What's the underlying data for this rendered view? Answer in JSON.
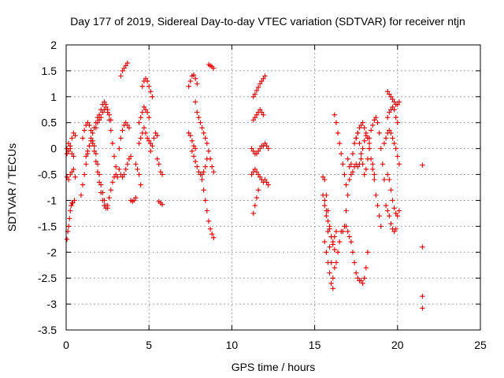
{
  "chart_data": {
    "type": "scatter",
    "title": "Day 177 of 2019, Sidereal Day-to-day VTEC variation (SDTVAR) for receiver ntjn",
    "xlabel": "GPS time / hours",
    "ylabel": "SDTVAR / TECUs",
    "xlim": [
      0,
      25
    ],
    "ylim": [
      -3.5,
      2
    ],
    "xticks": [
      0,
      5,
      10,
      15,
      20,
      25
    ],
    "xtick_labels": [
      "0",
      "5",
      "10",
      "15",
      "20",
      "25"
    ],
    "yticks": [
      2,
      1.5,
      1,
      0.5,
      0,
      -0.5,
      -1,
      -1.5,
      -2,
      -2.5,
      -3,
      -3.5
    ],
    "ytick_labels": [
      "2",
      "1.5",
      "1",
      "0.5",
      "0",
      "-0.5",
      "-1",
      "-1.5",
      "-2",
      "-2.5",
      "-3",
      "-3.5"
    ],
    "grid": true,
    "marker": "plus",
    "color": "#e00000",
    "series": [
      {
        "name": "s1",
        "x": [
          0.05,
          0.1,
          0.15,
          0.2,
          0.25,
          0.3,
          0.35,
          0.4,
          0.5
        ],
        "y": [
          -1.75,
          -1.6,
          -1.5,
          -1.35,
          -1.2,
          -1.1,
          -1.05,
          -1.05,
          -1.0
        ]
      },
      {
        "name": "s2",
        "x": [
          0.05,
          0.15,
          0.25,
          0.35,
          0.45,
          0.55
        ],
        "y": [
          0.0,
          0.1,
          0.05,
          0.2,
          0.3,
          0.25
        ]
      },
      {
        "name": "s3",
        "x": [
          0.05,
          0.15,
          0.25,
          0.35,
          0.45,
          0.55
        ],
        "y": [
          -0.55,
          -0.6,
          -0.5,
          -0.45,
          -0.4,
          -0.55
        ]
      },
      {
        "name": "s4",
        "x": [
          0.05,
          0.15,
          0.25,
          0.35,
          0.45
        ],
        "y": [
          -0.1,
          -0.05,
          0.0,
          -0.1,
          -0.15
        ]
      },
      {
        "name": "s5",
        "x": [
          0.9,
          1.0,
          1.1,
          1.2,
          1.3,
          1.4,
          1.5,
          1.6,
          1.7,
          1.8,
          1.9,
          2.0,
          2.1,
          2.2,
          2.3,
          2.4,
          2.5,
          2.6,
          2.7,
          2.8,
          2.9,
          3.0
        ],
        "y": [
          -0.9,
          -0.7,
          -0.5,
          -0.3,
          -0.1,
          0.05,
          0.2,
          0.3,
          0.4,
          0.5,
          0.6,
          0.65,
          0.75,
          0.85,
          0.9,
          0.85,
          0.7,
          0.55,
          0.35,
          0.1,
          -0.15,
          -0.35
        ]
      },
      {
        "name": "s6",
        "x": [
          1.0,
          1.1,
          1.2,
          1.3,
          1.4,
          1.5,
          1.6,
          1.7,
          1.8,
          1.9,
          2.0,
          2.1,
          2.2,
          2.3,
          2.4,
          2.5,
          2.6,
          2.7,
          2.8,
          2.9,
          3.0,
          3.1
        ],
        "y": [
          0.2,
          0.35,
          0.45,
          0.5,
          0.45,
          0.35,
          0.15,
          -0.05,
          -0.25,
          -0.45,
          -0.65,
          -0.85,
          -1.0,
          -1.1,
          -1.15,
          -1.1,
          -0.95,
          -0.8,
          -0.65,
          -0.55,
          -0.5,
          -0.55
        ]
      },
      {
        "name": "s7",
        "x": [
          1.2,
          1.3,
          1.4,
          1.5,
          1.6,
          1.7,
          1.8,
          1.9,
          2.0,
          2.1,
          2.2,
          2.3,
          2.4,
          2.5
        ],
        "y": [
          -0.15,
          -0.05,
          0.05,
          0.15,
          0.1,
          0.05,
          -0.1,
          -0.3,
          -0.5,
          -0.7,
          -0.85,
          -1.0,
          -1.1,
          -1.15
        ]
      },
      {
        "name": "s8",
        "x": [
          1.8,
          1.9,
          2.0,
          2.1,
          2.2,
          2.3,
          2.4,
          2.5,
          2.6,
          2.7
        ],
        "y": [
          0.4,
          0.5,
          0.55,
          0.6,
          0.7,
          0.75,
          0.8,
          0.75,
          0.65,
          0.55
        ]
      },
      {
        "name": "s9",
        "x": [
          3.3,
          3.4,
          3.5,
          3.6,
          3.7
        ],
        "y": [
          1.4,
          1.5,
          1.55,
          1.6,
          1.65
        ]
      },
      {
        "name": "s10",
        "x": [
          3.2,
          3.3,
          3.4,
          3.5,
          3.6,
          3.7,
          3.8
        ],
        "y": [
          0.0,
          0.2,
          0.35,
          0.45,
          0.5,
          0.45,
          0.4
        ]
      },
      {
        "name": "s11",
        "x": [
          3.2,
          3.3,
          3.4,
          3.5,
          3.6,
          3.7,
          3.8,
          3.9
        ],
        "y": [
          -0.4,
          -0.5,
          -0.55,
          -0.5,
          -0.4,
          -0.3,
          -0.2,
          -0.15
        ]
      },
      {
        "name": "s12",
        "x": [
          3.9,
          4.0,
          4.1,
          4.2
        ],
        "y": [
          -1.0,
          -1.02,
          -1.0,
          -0.95
        ]
      },
      {
        "name": "s13",
        "x": [
          4.2,
          4.3,
          4.4,
          4.5
        ],
        "y": [
          -0.3,
          -0.4,
          -0.5,
          -0.7
        ]
      },
      {
        "name": "s14",
        "x": [
          4.6,
          4.7,
          4.8,
          4.9,
          5.0,
          5.1,
          5.2
        ],
        "y": [
          1.2,
          1.3,
          1.35,
          1.3,
          1.2,
          1.1,
          1.0
        ]
      },
      {
        "name": "s15",
        "x": [
          4.4,
          4.5,
          4.6,
          4.7,
          4.8,
          4.9,
          5.0
        ],
        "y": [
          0.5,
          0.6,
          0.7,
          0.8,
          0.75,
          0.7,
          0.6
        ]
      },
      {
        "name": "s16",
        "x": [
          4.4,
          4.5,
          4.6,
          4.7,
          4.8,
          4.9,
          5.0,
          5.1
        ],
        "y": [
          0.1,
          0.2,
          0.3,
          0.4,
          0.3,
          0.2,
          0.15,
          0.1
        ]
      },
      {
        "name": "s17",
        "x": [
          5.1,
          5.2,
          5.3,
          5.4,
          5.5
        ],
        "y": [
          -0.05,
          0.05,
          0.2,
          0.3,
          0.25
        ]
      },
      {
        "name": "s18",
        "x": [
          5.5,
          5.6,
          5.7,
          5.8
        ],
        "y": [
          -0.2,
          -0.3,
          -0.45,
          -0.5
        ]
      },
      {
        "name": "s19",
        "x": [
          5.6,
          5.7,
          5.8
        ],
        "y": [
          -1.02,
          -1.05,
          -1.08
        ]
      },
      {
        "name": "s20",
        "x": [
          7.4,
          7.5,
          7.6,
          7.7,
          7.8,
          7.9
        ],
        "y": [
          1.2,
          1.3,
          1.4,
          1.42,
          1.35,
          1.25
        ]
      },
      {
        "name": "s21",
        "x": [
          7.4,
          7.5,
          7.6,
          7.7,
          7.8
        ],
        "y": [
          0.3,
          0.25,
          0.15,
          0.05,
          0.0
        ]
      },
      {
        "name": "s22",
        "x": [
          7.8,
          7.9,
          8.0,
          8.1,
          8.2,
          8.3,
          8.4,
          8.5,
          8.6,
          8.7,
          8.8,
          8.9
        ],
        "y": [
          0.9,
          0.7,
          0.6,
          0.5,
          0.4,
          0.3,
          0.2,
          0.1,
          -0.05,
          -0.2,
          -0.35,
          -0.45
        ]
      },
      {
        "name": "s23",
        "x": [
          7.6,
          7.7,
          7.8,
          7.9,
          8.0,
          8.1,
          8.2,
          8.3,
          8.4,
          8.5
        ],
        "y": [
          -0.05,
          -0.15,
          -0.25,
          -0.35,
          -0.45,
          -0.5,
          -0.5,
          -0.45,
          -0.35,
          -0.2
        ]
      },
      {
        "name": "s24",
        "x": [
          8.2,
          8.3,
          8.4,
          8.5,
          8.6,
          8.7,
          8.8,
          8.9
        ],
        "y": [
          -0.6,
          -0.8,
          -1.0,
          -1.2,
          -1.4,
          -1.55,
          -1.65,
          -1.72
        ]
      },
      {
        "name": "s25",
        "x": [
          8.6,
          8.7,
          8.8,
          8.9
        ],
        "y": [
          1.62,
          1.6,
          1.58,
          1.55
        ]
      },
      {
        "name": "s26",
        "x": [
          11.3,
          11.4,
          11.5,
          11.6,
          11.7,
          11.8,
          11.9,
          12.0
        ],
        "y": [
          1.0,
          1.05,
          1.12,
          1.18,
          1.25,
          1.3,
          1.35,
          1.4
        ]
      },
      {
        "name": "s27",
        "x": [
          11.3,
          11.4,
          11.5,
          11.6,
          11.7,
          11.8,
          11.9
        ],
        "y": [
          0.55,
          0.6,
          0.65,
          0.7,
          0.75,
          0.7,
          0.65
        ]
      },
      {
        "name": "s28",
        "x": [
          11.2,
          11.3,
          11.4,
          11.5,
          11.6,
          11.7,
          11.8,
          11.9,
          12.0,
          12.1,
          12.2
        ],
        "y": [
          0.0,
          -0.05,
          -0.1,
          -0.1,
          -0.05,
          0.0,
          0.05,
          0.05,
          0.1,
          0.05,
          0.0
        ]
      },
      {
        "name": "s29",
        "x": [
          11.2,
          11.3,
          11.4,
          11.5,
          11.6,
          11.7,
          11.8,
          11.9,
          12.0,
          12.1,
          12.2
        ],
        "y": [
          -0.5,
          -0.45,
          -0.4,
          -0.45,
          -0.5,
          -0.55,
          -0.6,
          -0.65,
          -0.6,
          -0.65,
          -0.7
        ]
      },
      {
        "name": "s30",
        "x": [
          11.3,
          11.4,
          11.5,
          11.6
        ],
        "y": [
          -1.25,
          -1.1,
          -0.95,
          -0.8
        ]
      },
      {
        "name": "s31",
        "x": [
          15.5,
          15.6,
          15.7,
          15.8,
          15.9,
          16.0,
          16.1,
          16.2,
          16.3
        ],
        "y": [
          -0.55,
          -0.6,
          -0.9,
          -1.2,
          -1.5,
          -1.7,
          -1.8,
          -1.7,
          -1.6
        ]
      },
      {
        "name": "s32",
        "x": [
          15.5,
          15.6,
          15.7,
          15.8,
          15.9,
          16.0,
          16.1
        ],
        "y": [
          -0.9,
          -1.1,
          -1.3,
          -1.6,
          -1.9,
          -2.2,
          -2.5
        ]
      },
      {
        "name": "s33",
        "x": [
          15.6,
          15.7,
          15.8,
          15.9,
          16.0,
          16.1
        ],
        "y": [
          -1.8,
          -2.0,
          -2.2,
          -2.4,
          -2.6,
          -2.7
        ]
      },
      {
        "name": "s34",
        "x": [
          15.6,
          15.7,
          15.8,
          15.9,
          16.0,
          16.1,
          16.2
        ],
        "y": [
          -1.0,
          -1.2,
          -1.4,
          -1.55,
          -1.7,
          -1.85,
          -1.95
        ]
      },
      {
        "name": "s35",
        "x": [
          16.2,
          16.3,
          16.4,
          16.5,
          16.6,
          16.7,
          16.8,
          16.9
        ],
        "y": [
          0.65,
          0.5,
          0.3,
          0.1,
          -0.1,
          -0.3,
          -0.5,
          -0.7
        ]
      },
      {
        "name": "s36",
        "x": [
          16.2,
          16.3,
          16.4,
          16.5,
          16.6
        ],
        "y": [
          -2.3,
          -2.2,
          -2.0,
          -1.8,
          -1.6
        ]
      },
      {
        "name": "s37",
        "x": [
          16.7,
          16.8,
          16.9,
          17.0,
          17.1,
          17.2,
          17.3,
          17.4,
          17.5,
          17.6,
          17.7,
          17.8,
          17.9,
          18.0,
          18.1,
          18.2,
          18.3
        ],
        "y": [
          -1.6,
          -1.5,
          -1.2,
          -0.9,
          -0.6,
          -0.3,
          -0.1,
          0.1,
          0.2,
          0.3,
          0.4,
          0.45,
          0.5,
          0.4,
          0.3,
          0.2,
          0.1
        ]
      },
      {
        "name": "s38",
        "x": [
          16.9,
          17.0,
          17.1,
          17.2,
          17.3,
          17.4,
          17.5,
          17.6,
          17.7,
          17.8,
          17.9,
          18.0,
          18.1,
          18.2
        ],
        "y": [
          -1.5,
          -1.6,
          -1.7,
          -1.8,
          -2.0,
          -2.2,
          -2.4,
          -2.5,
          -2.55,
          -2.55,
          -2.6,
          -2.5,
          -2.3,
          -2.0
        ]
      },
      {
        "name": "s39",
        "x": [
          17.0,
          17.1,
          17.2,
          17.3,
          17.4,
          17.5,
          17.6,
          17.7,
          17.8,
          17.9,
          18.0,
          18.1,
          18.2,
          18.3,
          18.4,
          18.5,
          18.6
        ],
        "y": [
          -0.2,
          -0.35,
          -0.5,
          -0.45,
          -0.35,
          -0.3,
          -0.35,
          -0.3,
          -0.2,
          0.0,
          0.15,
          0.25,
          0.2,
          0.0,
          -0.2,
          -0.4,
          -0.5
        ]
      },
      {
        "name": "s40",
        "x": [
          17.5,
          17.6,
          17.7,
          17.8,
          17.9,
          18.0,
          18.1,
          18.2,
          18.3
        ],
        "y": [
          0.2,
          0.3,
          0.1,
          -0.1,
          -0.3,
          -0.5,
          -0.4,
          -0.2,
          0.0
        ]
      },
      {
        "name": "s41",
        "x": [
          18.3,
          18.4,
          18.5,
          18.6,
          18.7,
          18.8,
          18.9,
          19.0,
          19.1,
          19.2
        ],
        "y": [
          0.2,
          0.35,
          0.45,
          0.55,
          0.6,
          0.5,
          0.3,
          0.0,
          -0.3,
          -0.6
        ]
      },
      {
        "name": "s42",
        "x": [
          18.5,
          18.6,
          18.7,
          18.8,
          18.9,
          19.0
        ],
        "y": [
          -0.3,
          -0.6,
          -0.9,
          -1.1,
          -1.3,
          -1.5
        ]
      },
      {
        "name": "s43",
        "x": [
          19.4,
          19.5,
          19.6,
          19.7,
          19.8,
          19.9,
          20.0,
          20.1
        ],
        "y": [
          1.1,
          1.05,
          1.0,
          0.95,
          0.9,
          0.85,
          0.85,
          0.9
        ]
      },
      {
        "name": "s44",
        "x": [
          19.4,
          19.5,
          19.6,
          19.7,
          19.8,
          19.9,
          20.0
        ],
        "y": [
          0.6,
          0.7,
          0.75,
          0.8,
          0.75,
          0.6,
          0.5
        ]
      },
      {
        "name": "s45",
        "x": [
          19.2,
          19.3,
          19.4,
          19.5,
          19.6,
          19.7,
          19.8,
          19.9,
          20.0,
          20.1
        ],
        "y": [
          0.1,
          0.2,
          0.3,
          0.35,
          0.3,
          0.2,
          0.1,
          0.0,
          -0.15,
          -0.3
        ]
      },
      {
        "name": "s46",
        "x": [
          19.4,
          19.5,
          19.6,
          19.7,
          19.8,
          19.9,
          20.0,
          20.1
        ],
        "y": [
          -0.5,
          -0.6,
          -0.8,
          -1.0,
          -1.15,
          -1.25,
          -1.3,
          -1.2
        ]
      },
      {
        "name": "s47",
        "x": [
          19.3,
          19.4,
          19.5,
          19.6,
          19.7,
          19.8,
          19.9
        ],
        "y": [
          -1.1,
          -1.2,
          -1.3,
          -1.45,
          -1.55,
          -1.6,
          -1.55
        ]
      },
      {
        "name": "s48",
        "x": [
          21.5
        ],
        "y": [
          -0.32
        ]
      },
      {
        "name": "s49",
        "x": [
          21.5
        ],
        "y": [
          -1.9
        ]
      },
      {
        "name": "s50",
        "x": [
          21.5
        ],
        "y": [
          -2.85
        ]
      },
      {
        "name": "s51",
        "x": [
          21.5
        ],
        "y": [
          -3.08
        ]
      }
    ]
  }
}
